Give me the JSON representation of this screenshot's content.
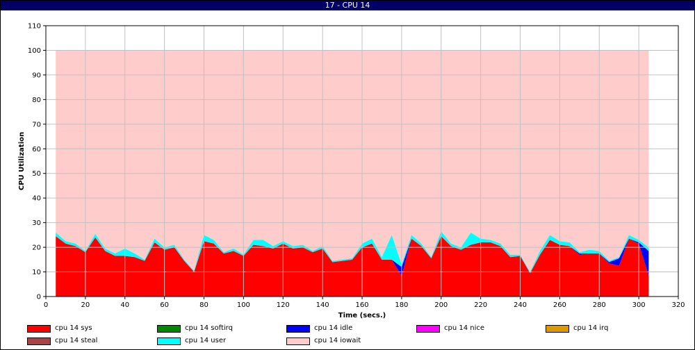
{
  "window": {
    "title": "17 - CPU 14"
  },
  "chart_data": {
    "type": "area",
    "stacked": true,
    "xlabel": "Time (secs.)",
    "ylabel": "CPU Utilization",
    "xlim": [
      0,
      320
    ],
    "ylim": [
      0,
      110
    ],
    "xticks": [
      0,
      20,
      40,
      60,
      80,
      100,
      120,
      140,
      160,
      180,
      200,
      220,
      240,
      260,
      280,
      300,
      320
    ],
    "yticks": [
      0,
      10,
      20,
      30,
      40,
      50,
      60,
      70,
      80,
      90,
      100,
      110
    ],
    "grid": true,
    "legend_position": "bottom",
    "x": [
      5,
      10,
      15,
      20,
      25,
      30,
      35,
      40,
      45,
      50,
      55,
      60,
      65,
      70,
      75,
      80,
      85,
      90,
      95,
      100,
      105,
      110,
      115,
      120,
      125,
      130,
      135,
      140,
      145,
      150,
      155,
      160,
      165,
      170,
      175,
      180,
      185,
      190,
      195,
      200,
      205,
      210,
      215,
      220,
      225,
      230,
      235,
      240,
      245,
      250,
      255,
      260,
      265,
      270,
      275,
      280,
      285,
      290,
      295,
      300,
      305
    ],
    "series": [
      {
        "name": "cpu 14 sys",
        "color": "#ff0000",
        "values": [
          24.5,
          21.5,
          20.5,
          18,
          24,
          18.5,
          16.5,
          16.5,
          16,
          14.5,
          22,
          19,
          20,
          14.5,
          10,
          22.5,
          21.5,
          17.5,
          18.5,
          16.5,
          21,
          20.5,
          19.5,
          21.5,
          19.5,
          20,
          18,
          19.5,
          14,
          14.5,
          15,
          20,
          21.5,
          15,
          15,
          8.5,
          23.5,
          20.5,
          15.5,
          24.5,
          20.5,
          19,
          21,
          22,
          22,
          20.5,
          16,
          16.5,
          9.5,
          17,
          23,
          21,
          20.5,
          17,
          17.5,
          17.5,
          13.5,
          12.5,
          23.5,
          21.5,
          8.5
        ]
      },
      {
        "name": "cpu 14 softirq",
        "color": "#008800",
        "values": [
          0,
          0,
          0,
          0,
          0,
          0,
          0,
          0,
          0,
          0,
          0,
          0,
          0,
          0,
          0,
          0,
          0,
          0,
          0,
          0,
          0,
          0,
          0,
          0,
          0,
          0,
          0,
          0,
          0,
          0,
          0,
          0,
          0,
          0,
          0,
          0,
          0,
          0,
          0,
          0,
          0,
          0,
          0,
          0,
          0,
          0,
          0,
          0,
          0,
          0,
          0,
          0,
          0,
          0,
          0,
          0,
          0,
          0,
          0,
          0,
          0
        ]
      },
      {
        "name": "cpu 14 idle",
        "color": "#0000ff",
        "values": [
          0,
          0,
          0,
          0,
          0,
          0,
          0,
          0,
          0,
          0,
          0,
          0,
          0,
          0,
          0,
          0,
          0,
          0,
          0,
          0,
          0,
          0,
          0,
          0,
          0,
          0,
          0,
          0,
          0,
          0,
          0,
          0,
          0,
          0,
          0,
          3.5,
          0,
          0,
          0,
          0,
          0,
          0,
          0,
          0,
          0,
          0,
          0,
          0,
          0,
          0,
          0,
          0,
          0,
          0.5,
          0,
          0,
          0.5,
          3,
          0,
          0.5,
          10
        ]
      },
      {
        "name": "cpu 14 nice",
        "color": "#ff00ff",
        "values": [
          0,
          0,
          0,
          0,
          0,
          0,
          0,
          0,
          0,
          0,
          0,
          0,
          0,
          0,
          0,
          0,
          0,
          0,
          0,
          0,
          0,
          0,
          0,
          0,
          0,
          0,
          0,
          0,
          0,
          0,
          0,
          0,
          0,
          0,
          0,
          0,
          0,
          0,
          0,
          0,
          0,
          0,
          0,
          0,
          0,
          0,
          0,
          0,
          0,
          0,
          0,
          0,
          0,
          0,
          0,
          0,
          0,
          0,
          0,
          0,
          0
        ]
      },
      {
        "name": "cpu 14 irq",
        "color": "#dd9900",
        "values": [
          0,
          0,
          0,
          0,
          0,
          0,
          0,
          0,
          0,
          0,
          0,
          0,
          0,
          0,
          0,
          0,
          0,
          0,
          0,
          0,
          0,
          0,
          0,
          0,
          0,
          0,
          0,
          0,
          0,
          0,
          0,
          0,
          0,
          0,
          0,
          0,
          0,
          0,
          0,
          0,
          0,
          0,
          0,
          0,
          0,
          0,
          0,
          0,
          0,
          0,
          0,
          0,
          0,
          0,
          0,
          0,
          0,
          0,
          0,
          0,
          0
        ]
      },
      {
        "name": "cpu 14 steal",
        "color": "#aa4444",
        "values": [
          0,
          0,
          0,
          0,
          0,
          0,
          0,
          0,
          0,
          0,
          0,
          0,
          0,
          0,
          0,
          0,
          0,
          0,
          0,
          0,
          0,
          0,
          0,
          0,
          0,
          0,
          0,
          0,
          0,
          0,
          0,
          0,
          0,
          0,
          0,
          0,
          0,
          0,
          0,
          0,
          0,
          0,
          0,
          0,
          0,
          0,
          0,
          0,
          0,
          0,
          0,
          0,
          0,
          0,
          0,
          0,
          0,
          0,
          0,
          0,
          0
        ]
      },
      {
        "name": "cpu 14 user",
        "color": "#00ffff",
        "values": [
          1.5,
          1,
          1,
          0.5,
          1.5,
          1,
          1,
          3,
          1.5,
          0.5,
          1.5,
          1,
          1,
          0.5,
          0.5,
          2.5,
          1.5,
          0.5,
          1,
          0.5,
          2,
          2.5,
          1,
          1,
          1,
          1,
          0.5,
          1,
          0.5,
          0.5,
          0.5,
          1.5,
          2,
          1,
          10,
          1,
          1.5,
          1,
          0.5,
          2,
          1,
          1,
          5,
          1.5,
          1,
          1,
          1,
          0.5,
          0.5,
          1.5,
          2,
          1.5,
          1.5,
          0.5,
          1.5,
          1,
          0.5,
          0.5,
          1.5,
          1,
          1.5
        ]
      },
      {
        "name": "cpu 14 iowait",
        "color": "#ffcccc",
        "values": [
          74,
          77.5,
          78.5,
          81.5,
          74.5,
          80.5,
          82.5,
          80.5,
          82.5,
          85,
          76.5,
          80,
          79,
          85,
          89.5,
          75,
          77,
          82,
          80.5,
          83,
          77,
          77,
          79.5,
          77.5,
          79.5,
          79,
          81.5,
          79.5,
          85.5,
          85,
          84.5,
          78.5,
          76.5,
          84,
          75,
          87,
          75,
          78.5,
          84,
          73.5,
          78.5,
          80,
          74,
          76.5,
          77,
          78.5,
          83,
          83,
          90,
          81.5,
          75,
          77.5,
          78,
          82,
          81,
          81.5,
          85.5,
          84,
          75,
          77,
          80
        ]
      }
    ]
  },
  "legend": {
    "items": [
      {
        "label": "cpu 14 sys",
        "color": "#ff0000"
      },
      {
        "label": "cpu 14 softirq",
        "color": "#008800"
      },
      {
        "label": "cpu 14 idle",
        "color": "#0000ff"
      },
      {
        "label": "cpu 14 nice",
        "color": "#ff00ff"
      },
      {
        "label": "cpu 14 irq",
        "color": "#dd9900"
      },
      {
        "label": "cpu 14 steal",
        "color": "#aa4444"
      },
      {
        "label": "cpu 14 user",
        "color": "#00ffff"
      },
      {
        "label": "cpu 14 iowait",
        "color": "#ffcccc"
      }
    ]
  }
}
